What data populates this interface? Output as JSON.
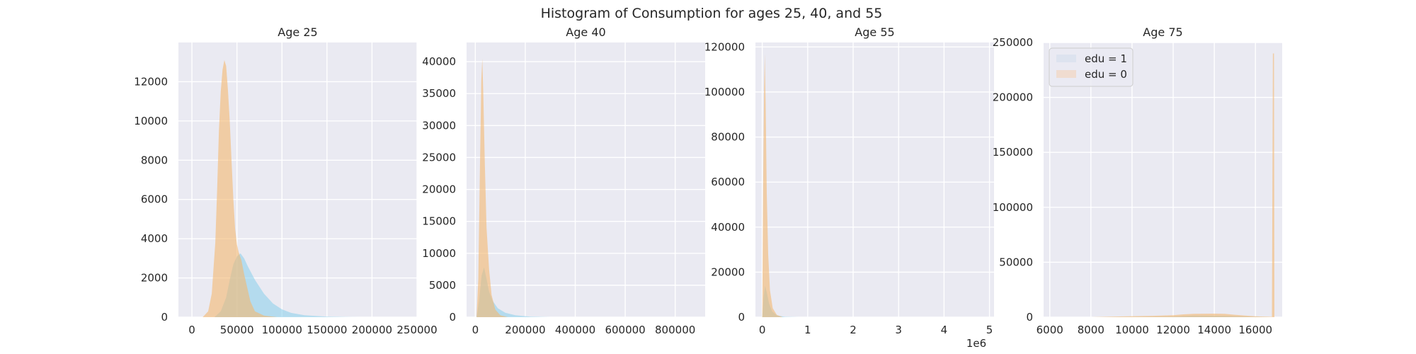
{
  "figure": {
    "suptitle": "Histogram of Consumption for ages 25, 40, and 55"
  },
  "colors": {
    "background": "#eaeaf2",
    "grid": "#ffffff",
    "edu1": "#87ceeb",
    "edu0": "#f4b76f",
    "edu1_legend": "#dde3ef",
    "edu0_legend": "#f0dcd0",
    "text": "#262626"
  },
  "legend": {
    "entries": [
      "edu = 1",
      "edu = 0"
    ],
    "placement": "upper-left of Age 75 panel"
  },
  "chart_data": [
    {
      "type": "area",
      "title": "Age 25",
      "xlim": [
        -15000,
        250000
      ],
      "ylim": [
        0,
        14000
      ],
      "xticks": [
        0,
        50000,
        100000,
        150000,
        200000,
        250000
      ],
      "xtick_labels": [
        "0",
        "50000",
        "100000",
        "150000",
        "200000",
        "250000"
      ],
      "yticks": [
        0,
        2000,
        4000,
        6000,
        8000,
        10000,
        12000
      ],
      "ytick_labels": [
        "0",
        "2000",
        "4000",
        "6000",
        "8000",
        "10000",
        "12000"
      ],
      "grid": true,
      "series": [
        {
          "name": "edu = 1",
          "points": [
            [
              25000,
              0
            ],
            [
              32000,
              300
            ],
            [
              38000,
              1000
            ],
            [
              42000,
              1900
            ],
            [
              46000,
              2700
            ],
            [
              50000,
              3100
            ],
            [
              54000,
              3250
            ],
            [
              58000,
              3000
            ],
            [
              62000,
              2600
            ],
            [
              70000,
              1900
            ],
            [
              80000,
              1200
            ],
            [
              90000,
              700
            ],
            [
              100000,
              400
            ],
            [
              110000,
              220
            ],
            [
              125000,
              100
            ],
            [
              150000,
              30
            ],
            [
              175000,
              5
            ],
            [
              200000,
              0
            ]
          ]
        },
        {
          "name": "edu = 0",
          "points": [
            [
              12000,
              0
            ],
            [
              18000,
              300
            ],
            [
              22000,
              1200
            ],
            [
              26000,
              3800
            ],
            [
              28000,
              6500
            ],
            [
              30000,
              9500
            ],
            [
              32000,
              11500
            ],
            [
              34000,
              12600
            ],
            [
              36000,
              13100
            ],
            [
              38000,
              12800
            ],
            [
              40000,
              11600
            ],
            [
              42000,
              10000
            ],
            [
              44000,
              8000
            ],
            [
              46000,
              6000
            ],
            [
              48000,
              4500
            ],
            [
              50000,
              3700
            ],
            [
              52000,
              3300
            ],
            [
              55000,
              2900
            ],
            [
              58000,
              2200
            ],
            [
              62000,
              1400
            ],
            [
              65000,
              800
            ],
            [
              70000,
              300
            ],
            [
              80000,
              80
            ],
            [
              95000,
              0
            ]
          ]
        }
      ]
    },
    {
      "type": "area",
      "title": "Age 40",
      "xlim": [
        -35000,
        920000
      ],
      "ylim": [
        0,
        43000
      ],
      "xticks": [
        0,
        200000,
        400000,
        600000,
        800000
      ],
      "xtick_labels": [
        "0",
        "200000",
        "400000",
        "600000",
        "800000"
      ],
      "yticks": [
        0,
        5000,
        10000,
        15000,
        20000,
        25000,
        30000,
        35000,
        40000
      ],
      "ytick_labels": [
        "0",
        "5000",
        "10000",
        "15000",
        "20000",
        "25000",
        "30000",
        "35000",
        "40000"
      ],
      "grid": true,
      "series": [
        {
          "name": "edu = 1",
          "points": [
            [
              5000,
              0
            ],
            [
              15000,
              2500
            ],
            [
              25000,
              6500
            ],
            [
              35000,
              7800
            ],
            [
              45000,
              6000
            ],
            [
              55000,
              4000
            ],
            [
              70000,
              2500
            ],
            [
              90000,
              1400
            ],
            [
              120000,
              700
            ],
            [
              160000,
              300
            ],
            [
              220000,
              80
            ],
            [
              300000,
              0
            ]
          ]
        },
        {
          "name": "edu = 0",
          "points": [
            [
              5000,
              0
            ],
            [
              12000,
              6000
            ],
            [
              18000,
              22000
            ],
            [
              24000,
              37000
            ],
            [
              28000,
              40500
            ],
            [
              32000,
              35000
            ],
            [
              38000,
              24000
            ],
            [
              45000,
              14000
            ],
            [
              55000,
              7500
            ],
            [
              65000,
              3500
            ],
            [
              80000,
              1200
            ],
            [
              100000,
              300
            ],
            [
              130000,
              0
            ]
          ]
        }
      ]
    },
    {
      "type": "area",
      "title": "Age 55",
      "xlim": [
        -150000,
        5100000
      ],
      "ylim": [
        0,
        122000
      ],
      "xticks": [
        0,
        1000000,
        2000000,
        3000000,
        4000000,
        5000000
      ],
      "xtick_labels": [
        "0",
        "1",
        "2",
        "3",
        "4",
        "5"
      ],
      "offset_label": "1e6",
      "yticks": [
        0,
        20000,
        40000,
        60000,
        80000,
        100000,
        120000
      ],
      "ytick_labels": [
        "0",
        "20000",
        "40000",
        "60000",
        "80000",
        "100000",
        "120000"
      ],
      "grid": true,
      "series": [
        {
          "name": "edu = 1",
          "points": [
            [
              0,
              0
            ],
            [
              30000,
              9000
            ],
            [
              60000,
              14000
            ],
            [
              100000,
              11000
            ],
            [
              150000,
              6000
            ],
            [
              220000,
              2500
            ],
            [
              320000,
              800
            ],
            [
              500000,
              150
            ],
            [
              800000,
              0
            ]
          ]
        },
        {
          "name": "edu = 0",
          "points": [
            [
              0,
              0
            ],
            [
              20000,
              60000
            ],
            [
              40000,
              100000
            ],
            [
              55000,
              117000
            ],
            [
              75000,
              95000
            ],
            [
              100000,
              55000
            ],
            [
              130000,
              28000
            ],
            [
              170000,
              12000
            ],
            [
              230000,
              4000
            ],
            [
              320000,
              1000
            ],
            [
              450000,
              0
            ]
          ]
        }
      ]
    },
    {
      "type": "area",
      "title": "Age 75",
      "xlim": [
        5700,
        17300
      ],
      "ylim": [
        0,
        250000
      ],
      "xticks": [
        6000,
        8000,
        10000,
        12000,
        14000,
        16000
      ],
      "xtick_labels": [
        "6000",
        "8000",
        "10000",
        "12000",
        "14000",
        "16000"
      ],
      "yticks": [
        0,
        50000,
        100000,
        150000,
        200000,
        250000
      ],
      "ytick_labels": [
        "0",
        "50000",
        "100000",
        "150000",
        "200000",
        "250000"
      ],
      "grid": true,
      "series": [
        {
          "name": "edu = 1",
          "points": [
            [
              8000,
              0
            ],
            [
              10000,
              200
            ],
            [
              12000,
              600
            ],
            [
              13000,
              1400
            ],
            [
              14500,
              1200
            ],
            [
              16000,
              300
            ],
            [
              16800,
              0
            ]
          ]
        },
        {
          "name": "edu = 0",
          "points": [
            [
              8000,
              0
            ],
            [
              9000,
              500
            ],
            [
              10000,
              900
            ],
            [
              11000,
              1200
            ],
            [
              12000,
              1800
            ],
            [
              12500,
              2600
            ],
            [
              13000,
              3100
            ],
            [
              14000,
              3200
            ],
            [
              14500,
              3000
            ],
            [
              15000,
              2200
            ],
            [
              15500,
              1500
            ],
            [
              16000,
              800
            ],
            [
              16800,
              300
            ],
            [
              16850,
              240000
            ],
            [
              16900,
              240000
            ],
            [
              16920,
              0
            ]
          ]
        }
      ]
    }
  ]
}
